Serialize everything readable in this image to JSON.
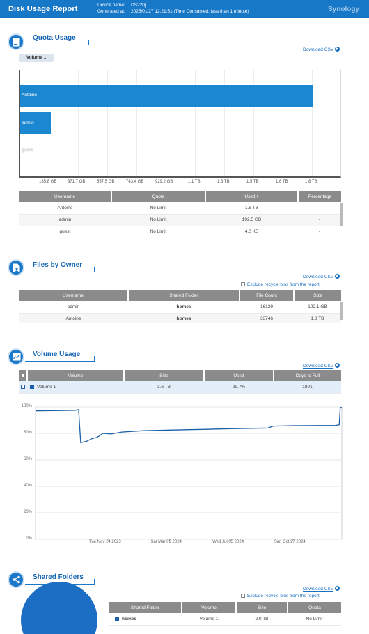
{
  "header": {
    "title": "Disk Usage Report",
    "device_label": "Device name:",
    "device_value": "DS220j",
    "generated_label": "Generated at:",
    "generated_value": "2025/01/27 12:21:51 (Time Consumed: less than 1 minute)",
    "brand": "Synology"
  },
  "quota": {
    "title": "Quota Usage",
    "download": "Download CSV",
    "volume_tab": "Volume 1",
    "bars": [
      {
        "label": "Antoine",
        "value_tb": 1.8
      },
      {
        "label": "admin",
        "value_gb": 192.5
      },
      {
        "label": "guest",
        "value_kb": 4.0
      }
    ],
    "x_ticks": [
      "185.8 GB",
      "371.7 GB",
      "557.5 GB",
      "743.4 GB",
      "929.2 GB",
      "1.1 TB",
      "1.3 TB",
      "1.5 TB",
      "1.6 TB",
      "1.8 TB"
    ],
    "columns": [
      "Username",
      "Quota",
      "Used ▾",
      "Percentage"
    ],
    "rows": [
      [
        "Antoine",
        "No Limit",
        "1.8 TB",
        "-"
      ],
      [
        "admin",
        "No Limit",
        "192.5 GB",
        "-"
      ],
      [
        "guest",
        "No Limit",
        "4.0 KB",
        "-"
      ]
    ]
  },
  "owner": {
    "title": "Files by Owner",
    "download": "Download CSV",
    "exclude": "Exclude recycle bins from the report",
    "columns": [
      "Username",
      "Shared Folder",
      "File Count",
      "Size"
    ],
    "rows": [
      [
        "admin",
        "homes",
        "16129",
        "192.1 GB"
      ],
      [
        "Antoine",
        "homes",
        "33746",
        "1.8 TB"
      ]
    ]
  },
  "volume": {
    "title": "Volume Usage",
    "download": "Download CSV",
    "columns": [
      "Volume",
      "Size",
      "Used",
      "Days to Full"
    ],
    "rows": [
      [
        "Volume 1",
        "3.6 TB",
        "99.7%",
        "1801"
      ]
    ],
    "accent": "#1b5fa8"
  },
  "chart_data": {
    "type": "line",
    "title": "",
    "xlabel": "",
    "ylabel": "",
    "ylim": [
      0,
      100
    ],
    "y_ticks": [
      "0%",
      "20%",
      "40%",
      "60%",
      "80%",
      "100%"
    ],
    "x_ticks": [
      "Tue Nov 14 2023",
      "Sat Mar 09 2024",
      "Wed Jul 03 2024",
      "Sun Oct 27 2024"
    ],
    "grid": true,
    "series": [
      {
        "name": "Volume 1",
        "points": [
          [
            "2023-07-01",
            97
          ],
          [
            "2023-09-15",
            97.5
          ],
          [
            "2023-09-20",
            98
          ],
          [
            "2023-09-24",
            73
          ],
          [
            "2023-10-05",
            74
          ],
          [
            "2023-10-15",
            76
          ],
          [
            "2023-10-25",
            77
          ],
          [
            "2023-11-05",
            80
          ],
          [
            "2023-11-20",
            79.5
          ],
          [
            "2023-12-10",
            81
          ],
          [
            "2024-01-20",
            82
          ],
          [
            "2024-03-09",
            82.5
          ],
          [
            "2024-05-10",
            83
          ],
          [
            "2024-07-03",
            83.5
          ],
          [
            "2024-09-10",
            84
          ],
          [
            "2024-09-20",
            85.5
          ],
          [
            "2024-10-27",
            85.8
          ],
          [
            "2025-01-15",
            86
          ],
          [
            "2025-01-22",
            86.5
          ],
          [
            "2025-01-24",
            99.5
          ],
          [
            "2025-01-27",
            99.7
          ]
        ]
      }
    ]
  },
  "shared": {
    "title": "Shared Folders",
    "download": "Download CSV",
    "exclude": "Exclude recycle bins from the report",
    "columns": [
      "Shared Folder",
      "Volume",
      "Size",
      "Quota"
    ],
    "rows": [
      [
        "homes",
        "Volume 1",
        "2.0 TB",
        "No Limit"
      ]
    ],
    "pie_color": "#1b6ec3"
  }
}
